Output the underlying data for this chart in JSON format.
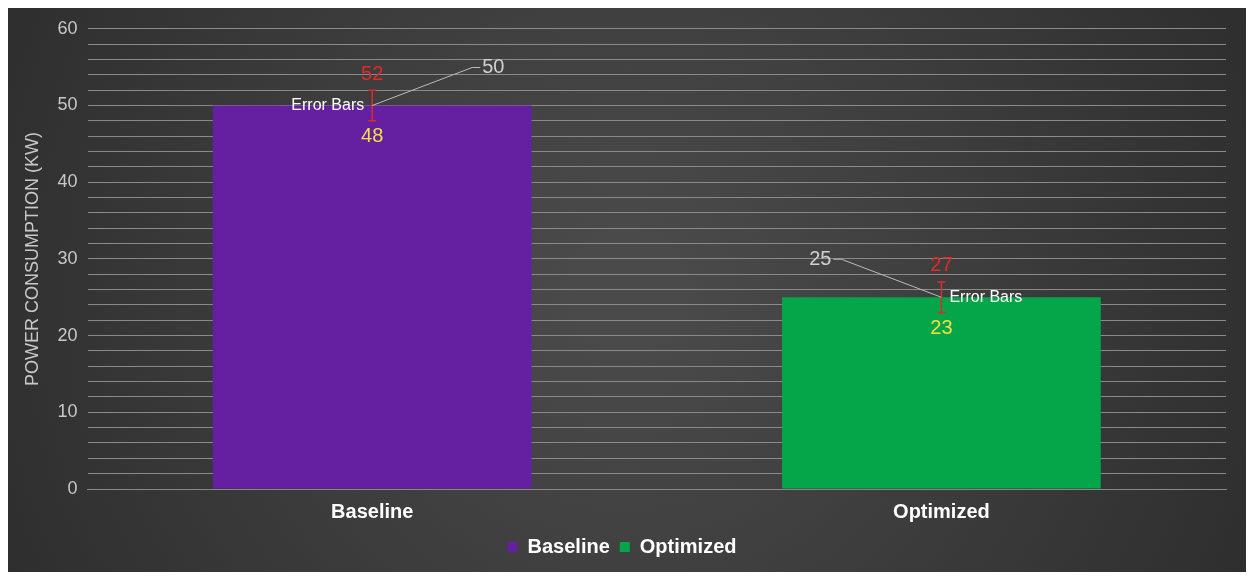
{
  "chart_data": {
    "type": "bar",
    "categories": [
      "Baseline",
      "Optimized"
    ],
    "series": [
      {
        "name": "Baseline",
        "color": "#6420a0",
        "values": [
          50,
          null
        ],
        "errors": [
          [
            48,
            52
          ],
          null
        ]
      },
      {
        "name": "Optimized",
        "color": "#05a64a",
        "values": [
          null,
          25
        ],
        "errors": [
          null,
          [
            23,
            27
          ]
        ]
      }
    ],
    "ylabel": "POWER CONSUMPTION (KW)",
    "ylim": [
      0,
      60
    ],
    "yticks": [
      0,
      {
        "value": 2,
        "label": null
      },
      {
        "value": 4,
        "label": null
      },
      {
        "value": 6,
        "label": null
      },
      {
        "value": 8,
        "label": null
      },
      10,
      {
        "value": 12,
        "label": null
      },
      {
        "value": 14,
        "label": null
      },
      {
        "value": 16,
        "label": null
      },
      {
        "value": 18,
        "label": null
      },
      20,
      {
        "value": 22,
        "label": null
      },
      {
        "value": 24,
        "label": null
      },
      {
        "value": 26,
        "label": null
      },
      {
        "value": 28,
        "label": null
      },
      30,
      {
        "value": 32,
        "label": null
      },
      {
        "value": 34,
        "label": null
      },
      {
        "value": 36,
        "label": null
      },
      {
        "value": 38,
        "label": null
      },
      40,
      {
        "value": 42,
        "label": null
      },
      {
        "value": 44,
        "label": null
      },
      {
        "value": 46,
        "label": null
      },
      {
        "value": 48,
        "label": null
      },
      50,
      {
        "value": 52,
        "label": null
      },
      {
        "value": 54,
        "label": null
      },
      {
        "value": 56,
        "label": null
      },
      {
        "value": 58,
        "label": null
      },
      60
    ],
    "grid": "y",
    "legend": "bottom",
    "data_labels": true,
    "annotations": [
      {
        "text": "Error Bars",
        "x": "Baseline",
        "y": 50
      },
      {
        "text": "52",
        "x": "Baseline",
        "y": 52
      },
      {
        "text": "48",
        "x": "Baseline",
        "y": 48
      },
      {
        "text": "Error Bars",
        "x": "Optimized",
        "y": 25
      },
      {
        "text": "27",
        "x": "Optimized",
        "y": 27
      },
      {
        "text": "23",
        "x": "Optimized",
        "y": 23
      }
    ]
  }
}
